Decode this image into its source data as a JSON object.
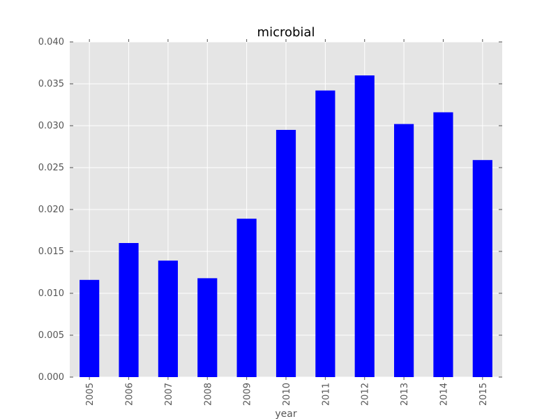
{
  "chart_data": {
    "type": "bar",
    "title": "microbial",
    "xlabel": "year",
    "ylabel": "",
    "categories": [
      "2005",
      "2006",
      "2007",
      "2008",
      "2009",
      "2010",
      "2011",
      "2012",
      "2013",
      "2014",
      "2015"
    ],
    "values": [
      0.0116,
      0.016,
      0.0139,
      0.0118,
      0.0189,
      0.0295,
      0.0342,
      0.036,
      0.0302,
      0.0316,
      0.0259
    ],
    "ylim": [
      0,
      0.04
    ],
    "yticks": [
      "0.000",
      "0.005",
      "0.010",
      "0.015",
      "0.020",
      "0.025",
      "0.030",
      "0.035",
      "0.040"
    ],
    "grid": true,
    "bar_color": "#0000ff",
    "plot_background": "#e5e5e5",
    "grid_color": "#ffffff"
  }
}
